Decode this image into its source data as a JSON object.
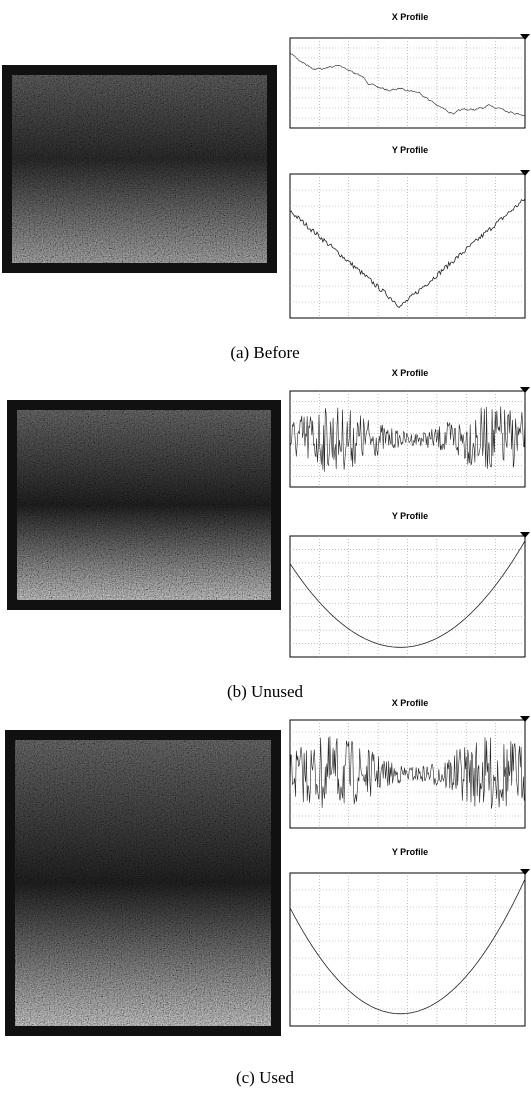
{
  "panels": [
    {
      "x_profile_title": "X Profile",
      "y_profile_title": "Y Profile",
      "caption": "(a) Before"
    },
    {
      "x_profile_title": "X Profile",
      "y_profile_title": "Y Profile",
      "caption": "(b) Unused"
    },
    {
      "x_profile_title": "X Profile",
      "y_profile_title": "Y Profile",
      "caption": "(c) Used"
    }
  ]
}
